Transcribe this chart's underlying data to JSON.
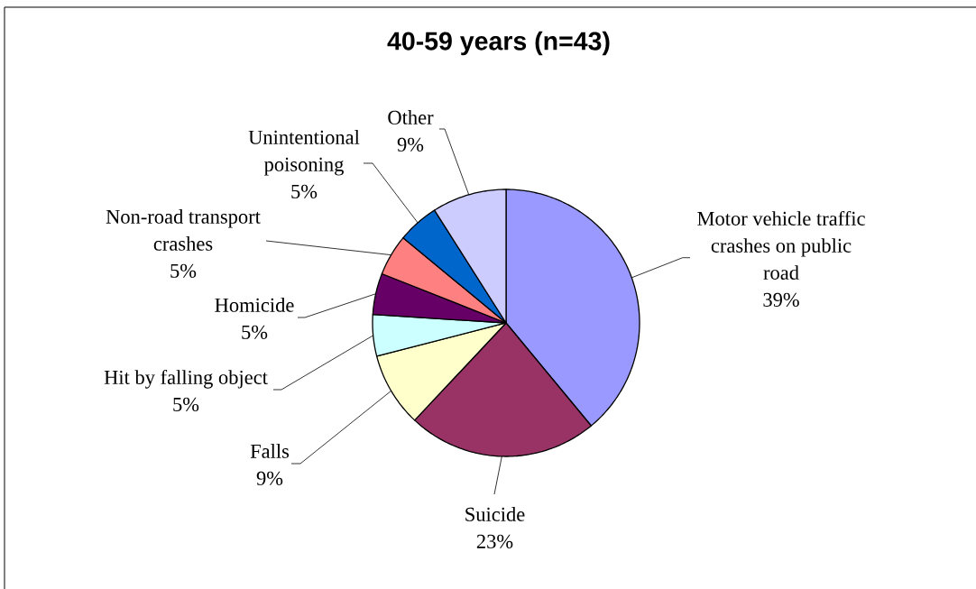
{
  "chart_data": {
    "type": "pie",
    "title": "40-59 years (n=43)",
    "categories": [
      "Motor vehicle traffic crashes on public road",
      "Suicide",
      "Falls",
      "Hit by falling object",
      "Homicide",
      "Non-road transport crashes",
      "Unintentional poisoning",
      "Other"
    ],
    "values": [
      39,
      23,
      9,
      5,
      5,
      5,
      5,
      9
    ],
    "value_labels": [
      "39%",
      "23%",
      "9%",
      "5%",
      "5%",
      "5%",
      "5%",
      "9%"
    ],
    "colors": [
      "#9999ff",
      "#993366",
      "#ffffcc",
      "#ccffff",
      "#660066",
      "#ff8080",
      "#0066cc",
      "#ccccff"
    ]
  }
}
